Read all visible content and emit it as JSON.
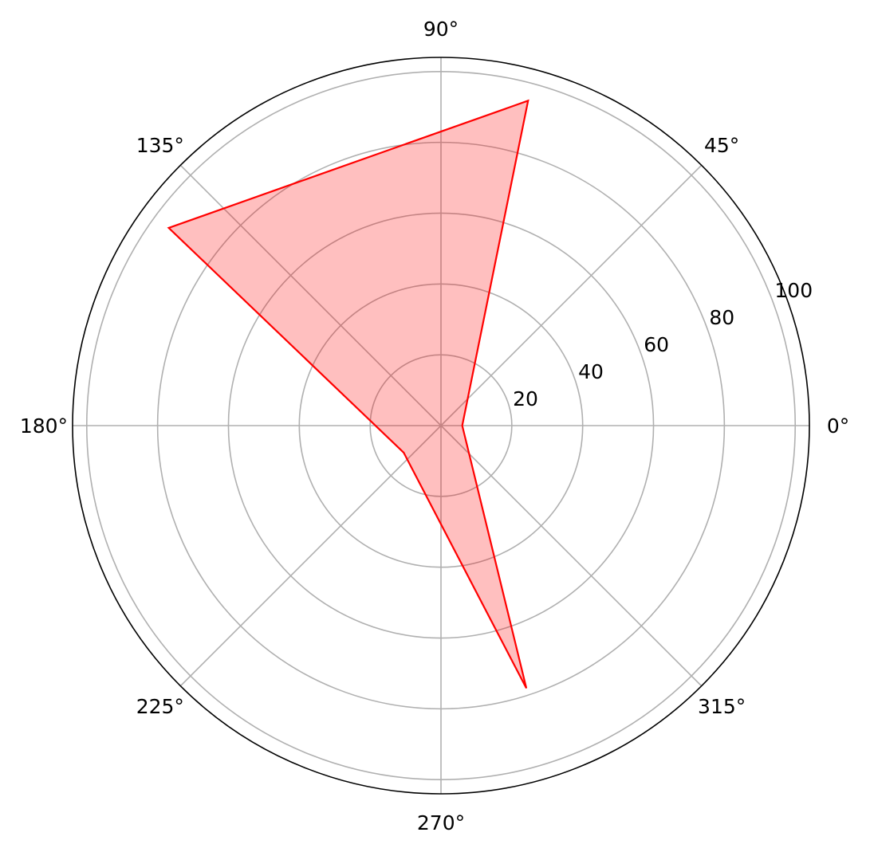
{
  "chart_data": {
    "type": "radar",
    "theta_unit": "degrees",
    "angle_ticks": [
      0,
      45,
      90,
      135,
      180,
      225,
      270,
      315
    ],
    "angle_tick_labels": [
      "0°",
      "45°",
      "90°",
      "135°",
      "180°",
      "225°",
      "270°",
      "315°"
    ],
    "radial_ticks": [
      20,
      40,
      60,
      80,
      100
    ],
    "radial_tick_labels": [
      "20",
      "40",
      "60",
      "80",
      "100"
    ],
    "rlim": [
      0,
      104
    ],
    "grid": true,
    "series": [
      {
        "points": [
          {
            "theta": 0,
            "r": 6
          },
          {
            "theta": 75,
            "r": 95
          },
          {
            "theta": 144,
            "r": 95
          },
          {
            "theta": 216,
            "r": 13
          },
          {
            "theta": 288,
            "r": 78
          }
        ],
        "line_color": "#ff0000",
        "fill_color": "#ff0000",
        "fill_opacity": 0.25
      }
    ]
  }
}
